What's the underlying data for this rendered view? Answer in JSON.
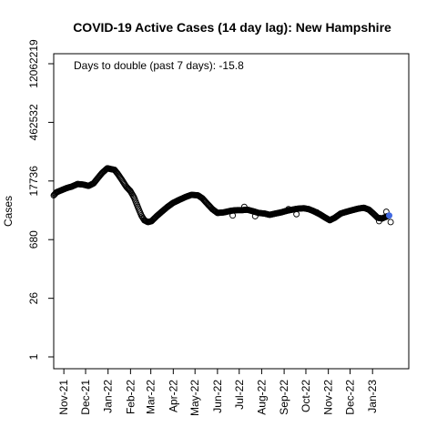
{
  "chart_data": {
    "type": "scatter",
    "title": "COVID-19 Active Cases (14 day lag): New Hampshire",
    "xlabel": "",
    "ylabel": "Cases",
    "y_scale": "log",
    "y_ticks": [
      1,
      26,
      680,
      17736,
      462532,
      12062219
    ],
    "y_tick_labels": [
      "1",
      "26",
      "680",
      "17736",
      "462532",
      "12062219"
    ],
    "x_ticks": [
      "2021-11-01",
      "2021-12-01",
      "2022-01-01",
      "2022-02-01",
      "2022-03-01",
      "2022-04-01",
      "2022-05-01",
      "2022-06-01",
      "2022-07-01",
      "2022-08-01",
      "2022-09-01",
      "2022-10-01",
      "2022-11-01",
      "2022-12-01",
      "2023-01-01"
    ],
    "x_tick_labels": [
      "Nov-21",
      "Dec-21",
      "Jan-22",
      "Feb-22",
      "Mar-22",
      "Apr-22",
      "May-22",
      "Jun-22",
      "Jul-22",
      "Aug-22",
      "Sep-22",
      "Oct-22",
      "Nov-22",
      "Dec-22",
      "Jan-23"
    ],
    "xlim": [
      "2021-10-18",
      "2023-02-20"
    ],
    "annotation": "Days to double (past 7 days): -15.8",
    "point_color": "#000000",
    "highlight_color": "#4169E1",
    "key_points": [
      [
        "2021-10-18",
        8000
      ],
      [
        "2021-10-22",
        9500
      ],
      [
        "2021-10-28",
        10500
      ],
      [
        "2021-11-05",
        12000
      ],
      [
        "2021-11-12",
        13000
      ],
      [
        "2021-11-20",
        15000
      ],
      [
        "2021-11-28",
        14500
      ],
      [
        "2021-12-05",
        13500
      ],
      [
        "2021-12-12",
        15500
      ],
      [
        "2021-12-18",
        21000
      ],
      [
        "2021-12-24",
        28000
      ],
      [
        "2021-12-31",
        36000
      ],
      [
        "2022-01-06",
        34000
      ],
      [
        "2022-01-10",
        33000
      ],
      [
        "2022-01-14",
        27000
      ],
      [
        "2022-01-20",
        19000
      ],
      [
        "2022-01-26",
        13000
      ],
      [
        "2022-02-01",
        10000
      ],
      [
        "2022-02-06",
        7000
      ],
      [
        "2022-02-11",
        4200
      ],
      [
        "2022-02-16",
        2600
      ],
      [
        "2022-02-20",
        2000
      ],
      [
        "2022-02-25",
        1800
      ],
      [
        "2022-03-02",
        1900
      ],
      [
        "2022-03-09",
        2500
      ],
      [
        "2022-03-16",
        3200
      ],
      [
        "2022-03-24",
        4200
      ],
      [
        "2022-04-01",
        5300
      ],
      [
        "2022-04-10",
        6300
      ],
      [
        "2022-04-18",
        7300
      ],
      [
        "2022-04-26",
        8200
      ],
      [
        "2022-05-05",
        8000
      ],
      [
        "2022-05-11",
        6800
      ],
      [
        "2022-05-18",
        5000
      ],
      [
        "2022-05-25",
        3700
      ],
      [
        "2022-06-01",
        3000
      ],
      [
        "2022-06-10",
        3100
      ],
      [
        "2022-06-20",
        3400
      ],
      [
        "2022-06-28",
        3500
      ],
      [
        "2022-07-05",
        3500
      ],
      [
        "2022-07-12",
        3600
      ],
      [
        "2022-07-20",
        3300
      ],
      [
        "2022-07-28",
        3000
      ],
      [
        "2022-08-05",
        2900
      ],
      [
        "2022-08-12",
        2700
      ],
      [
        "2022-08-20",
        2900
      ],
      [
        "2022-08-28",
        3100
      ],
      [
        "2022-09-05",
        3400
      ],
      [
        "2022-09-12",
        3600
      ],
      [
        "2022-09-20",
        3800
      ],
      [
        "2022-09-28",
        3900
      ],
      [
        "2022-10-05",
        3700
      ],
      [
        "2022-10-12",
        3300
      ],
      [
        "2022-10-20",
        2800
      ],
      [
        "2022-10-28",
        2300
      ],
      [
        "2022-11-03",
        2000
      ],
      [
        "2022-11-10",
        2300
      ],
      [
        "2022-11-18",
        2900
      ],
      [
        "2022-11-26",
        3200
      ],
      [
        "2022-12-04",
        3500
      ],
      [
        "2022-12-12",
        3800
      ],
      [
        "2022-12-20",
        4000
      ],
      [
        "2022-12-27",
        3600
      ],
      [
        "2023-01-02",
        2900
      ],
      [
        "2023-01-08",
        2300
      ],
      [
        "2023-01-14",
        2200
      ],
      [
        "2023-01-19",
        2400
      ],
      [
        "2023-01-24",
        2600
      ]
    ],
    "outliers": [
      [
        "2022-06-22",
        2600
      ],
      [
        "2022-07-08",
        4200
      ],
      [
        "2022-07-23",
        2500
      ],
      [
        "2022-09-07",
        3700
      ],
      [
        "2022-09-18",
        2800
      ],
      [
        "2022-10-16",
        3100
      ],
      [
        "2023-01-10",
        1900
      ],
      [
        "2023-01-20",
        3200
      ],
      [
        "2023-01-26",
        1800
      ]
    ],
    "highlight_last": [
      "2023-01-24",
      2600
    ]
  }
}
